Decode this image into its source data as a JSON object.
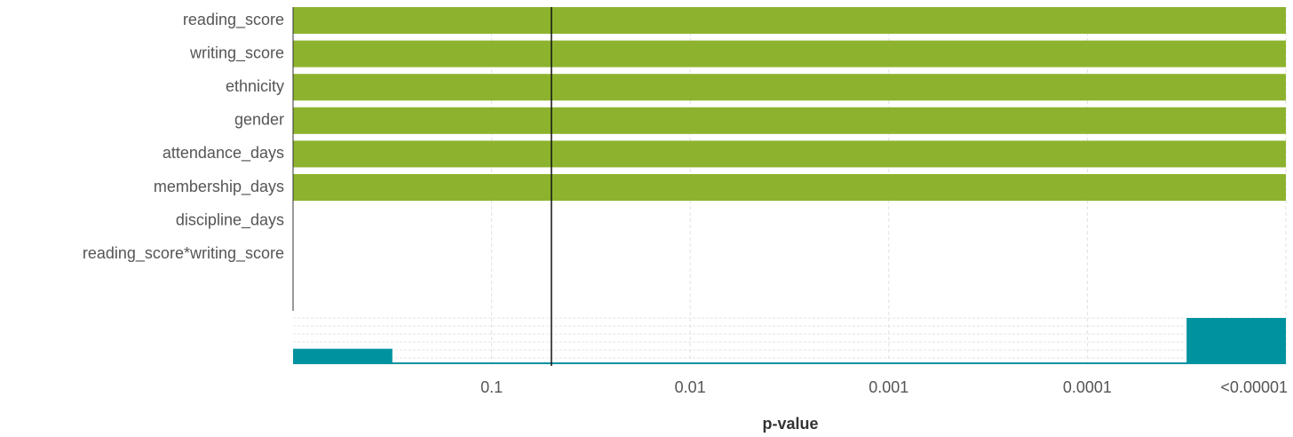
{
  "chart_data": [
    {
      "type": "bar",
      "orientation": "horizontal",
      "categories": [
        "reading_score",
        "writing_score",
        "ethnicity",
        "gender",
        "attendance_days",
        "membership_days",
        "discipline_days",
        "reading_score*writing_score"
      ],
      "values": [
        1e-05,
        1e-05,
        1e-05,
        1e-05,
        1e-05,
        1e-05,
        null,
        null
      ],
      "color": "#8db32e",
      "xlabel": "p-value",
      "xscale": "log",
      "xlim": [
        1,
        1e-05
      ],
      "xticks": [
        0.1,
        0.01,
        0.001,
        0.0001,
        {
          "value": 1e-05,
          "label": "<0.00001"
        }
      ],
      "reference_line": 0.05,
      "grid": true
    },
    {
      "type": "histogram",
      "bins": [
        1,
        0.31623,
        0.1,
        0.031623,
        0.01,
        0.0031623,
        0.001,
        0.00031623,
        0.0001,
        3.1623e-05,
        1e-05
      ],
      "counts": [
        2,
        0,
        0,
        0,
        0,
        0,
        0,
        0,
        0,
        6
      ],
      "color": "#00929f",
      "xscale": "log",
      "xlim": [
        1,
        1e-05
      ],
      "ylim": [
        0,
        6
      ]
    }
  ]
}
